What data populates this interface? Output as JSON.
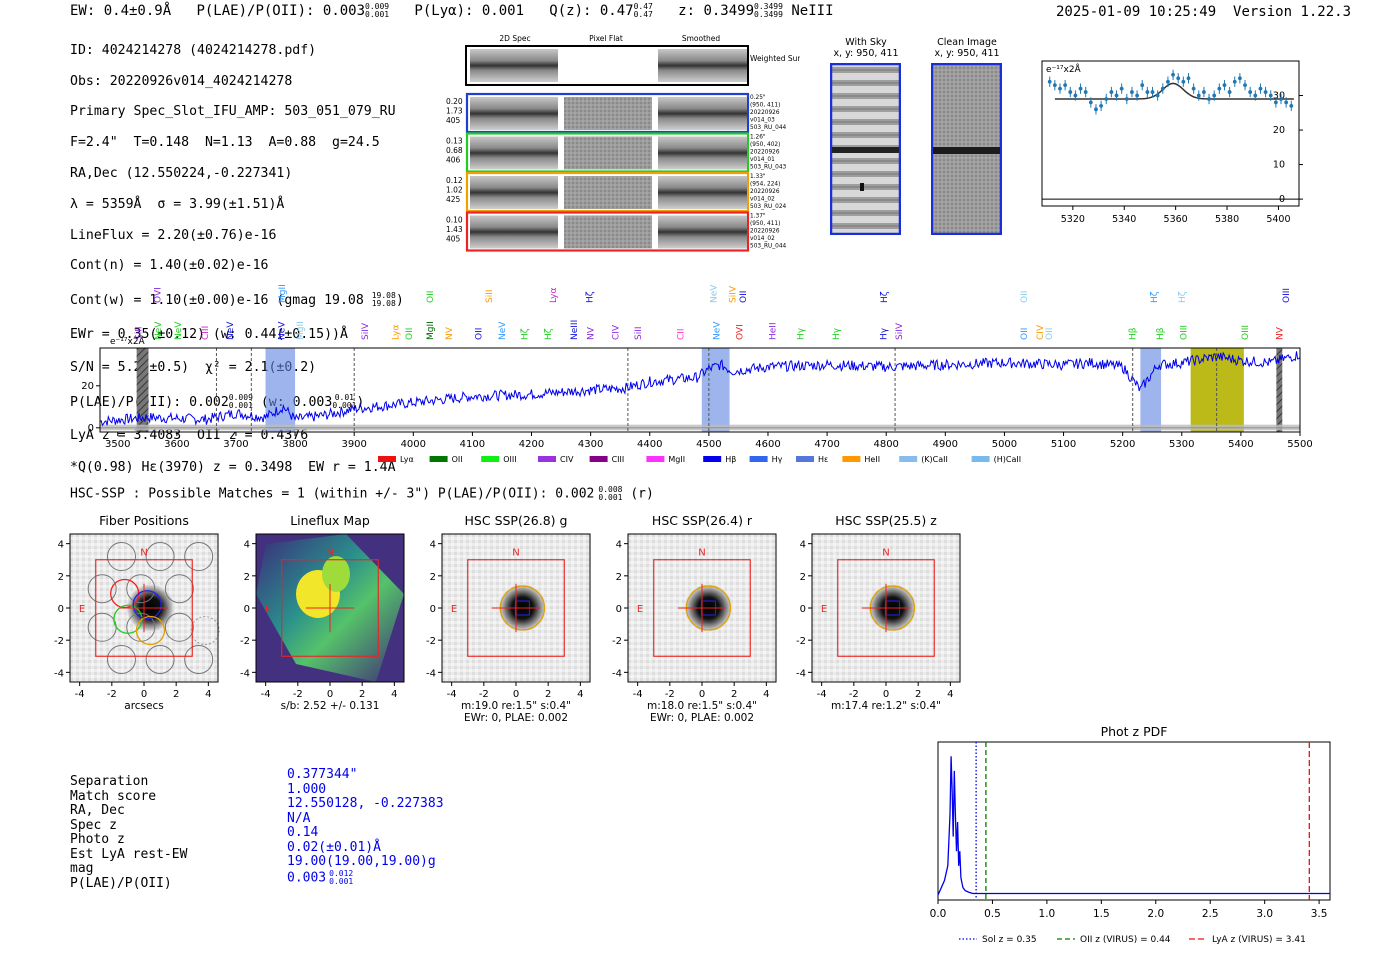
{
  "header": {
    "ew": "EW: 0.4±0.9Å",
    "plae_label": "P(LAE)/P(OII): 0.003",
    "plae_hi": "0.009",
    "plae_lo": "0.001",
    "plya": "P(Lyα): 0.001",
    "qz_label": "Q(z): 0.47",
    "qz_hi": "0.47",
    "qz_lo": "0.47",
    "z_label": "z: 0.3499",
    "z_hi": "0.3499",
    "z_lo": "0.3499",
    "line": "NeIII",
    "timestamp": "2025-01-09 10:25:49",
    "version": "Version 1.22.3"
  },
  "info": {
    "id": "ID: 4024214278 (4024214278.pdf)",
    "obs": "Obs: 20220926v014_4024214278",
    "primary": "Primary Spec_Slot_IFU_AMP: 503_051_079_RU",
    "fwhm": "F=2.4\"  T=0.148  N=1.13  A=0.88  g=24.5",
    "radec": "RA,Dec (12.550224,-0.227341)",
    "lambda": "λ = 5359Å  σ = 3.99(±1.51)Å",
    "lineflux": "LineFlux = 2.20(±0.76)e-16",
    "contn": "Cont(n) = 1.40(±0.02)e-16",
    "contw": "Cont(w) = 1.10(±0.00)e-16 (gmag 19.08",
    "contw_hi": "19.08",
    "contw_lo": "19.08",
    "ewr": "EWr = 0.35(±0.12) (w: 0.44(±0.15))Å",
    "sn": "S/N = 5.2(±0.5)  χ² = 2.1(±0.2)",
    "plae": "P(LAE)/P(OII): 0.002",
    "plae_hi": "0.009",
    "plae_lo": "0.001",
    "plae_w": "(w: 0.003",
    "plae_w_hi": "0.01",
    "plae_w_lo": "0.001",
    "lya": "LyA z = 3.4083  OII z = 0.4376",
    "q": "*Q(0.98) Hε(3970) z = 0.3498  EW r = 1.4Å"
  },
  "cutouts": {
    "col_labels": [
      "2D Spec",
      "Pixel Flat",
      "Smoothed"
    ],
    "weighted_label": "Weighted Sum",
    "rows": [
      {
        "nums": [
          "0.20",
          "1.73",
          "405"
        ],
        "meta": [
          "0.25\"",
          "(950, 411)",
          "20220926",
          "v014_03",
          "503_RU_044"
        ],
        "color": "#1f3fd0"
      },
      {
        "nums": [
          "0.13",
          "0.68",
          "406"
        ],
        "meta": [
          "1.26\"",
          "(950, 402)",
          "20220926",
          "v014_01",
          "503_RU_043"
        ],
        "color": "#22cc22"
      },
      {
        "nums": [
          "0.12",
          "1.02",
          "425"
        ],
        "meta": [
          "1.33\"",
          "(954, 224)",
          "20220926",
          "v014_02",
          "503_RU_024"
        ],
        "color": "#f0a000"
      },
      {
        "nums": [
          "0.10",
          "1.43",
          "405"
        ],
        "meta": [
          "1.37\"",
          "(950, 411)",
          "20220926",
          "v014_02",
          "503_RU_044"
        ],
        "color": "#ee2222"
      }
    ],
    "with_sky": "With Sky",
    "with_sky_xy": "x, y: 950, 411",
    "clean": "Clean Image",
    "clean_xy": "x, y: 950, 411"
  },
  "zoom_chart": {
    "type": "line",
    "ylabel": "e⁻¹⁷x2Å",
    "xlim": [
      5308,
      5408
    ],
    "ylim": [
      -2,
      40
    ],
    "xticks": [
      5320,
      5340,
      5360,
      5380,
      5400
    ],
    "yticks": [
      0,
      10,
      20,
      30
    ],
    "x": [
      5311,
      5313,
      5315,
      5317,
      5319,
      5321,
      5323,
      5325,
      5327,
      5329,
      5331,
      5333,
      5335,
      5337,
      5339,
      5341,
      5343,
      5345,
      5347,
      5349,
      5351,
      5353,
      5355,
      5357,
      5359,
      5361,
      5363,
      5365,
      5367,
      5369,
      5371,
      5373,
      5375,
      5377,
      5379,
      5381,
      5383,
      5385,
      5387,
      5389,
      5391,
      5393,
      5395,
      5397,
      5399,
      5401,
      5403,
      5405
    ],
    "y": [
      34,
      33,
      32,
      33,
      31,
      30,
      32,
      31,
      28,
      26,
      27,
      29,
      31,
      30,
      32,
      29,
      31,
      30,
      33,
      31,
      31,
      30,
      32,
      34,
      36,
      35,
      34,
      35,
      32,
      30,
      31,
      29,
      30,
      32,
      33,
      31,
      34,
      35,
      33,
      31,
      30,
      32,
      31,
      30,
      28,
      29,
      28,
      27
    ],
    "fit_baseline": 29,
    "fit_peak": 33.5,
    "fit_center": 5359,
    "fit_sigma": 4
  },
  "spectrum": {
    "type": "line",
    "ylabel": "e⁻¹⁷x2Å",
    "xlim": [
      3470,
      5500
    ],
    "ylim": [
      -2,
      38
    ],
    "xticks": [
      3500,
      3600,
      3700,
      3800,
      3900,
      4000,
      4100,
      4200,
      4300,
      4400,
      4500,
      4600,
      4700,
      4800,
      4900,
      5000,
      5100,
      5200,
      5300,
      5400,
      5500
    ],
    "yticks": [
      0,
      20
    ],
    "anchors_x": [
      3470,
      3550,
      3650,
      3700,
      3750,
      3780,
      3800,
      3850,
      3900,
      4000,
      4100,
      4200,
      4300,
      4360,
      4400,
      4480,
      4500,
      4520,
      4540,
      4600,
      4700,
      4800,
      4900,
      5000,
      5100,
      5150,
      5200,
      5230,
      5260,
      5300,
      5359,
      5400,
      5450,
      5500
    ],
    "anchors_y": [
      3,
      5,
      4,
      7,
      5,
      10,
      4,
      6,
      9,
      12,
      15,
      16,
      18,
      19,
      22,
      24,
      28,
      30,
      27,
      29,
      30,
      29,
      30,
      31,
      30,
      31,
      29,
      18,
      30,
      31,
      34,
      32,
      31,
      35
    ],
    "bands": [
      {
        "x0": 3750,
        "x1": 3800,
        "color": "#5b84e0",
        "alpha": 0.6
      },
      {
        "x0": 4488,
        "x1": 4535,
        "color": "#5b84e0",
        "alpha": 0.6
      },
      {
        "x0": 5230,
        "x1": 5265,
        "color": "#5b84e0",
        "alpha": 0.6
      },
      {
        "x0": 5315,
        "x1": 5405,
        "color": "#b5b300",
        "alpha": 0.9
      }
    ],
    "hatched": [
      {
        "x0": 3532,
        "x1": 3552
      },
      {
        "x0": 5460,
        "x1": 5470
      }
    ],
    "dashed_lines": [
      3667,
      3726,
      3900,
      4363,
      4500,
      4815,
      5217,
      5359
    ],
    "line_labels_top": [
      {
        "x": 3567,
        "text": "OVI",
        "color": "#8a2be2"
      },
      {
        "x": 3778,
        "text": "MgII",
        "color": "#3399ff"
      },
      {
        "x": 4028,
        "text": "OII",
        "color": "#22cc22"
      },
      {
        "x": 4128,
        "text": "SiII",
        "color": "#ff9900"
      },
      {
        "x": 4236,
        "text": "Lyα",
        "color": "#cc22cc"
      },
      {
        "x": 4298,
        "text": "Hζ",
        "color": "#1010dd"
      },
      {
        "x": 4508,
        "text": "NeV",
        "color": "#88ccee"
      },
      {
        "x": 4540,
        "text": "SiIV",
        "color": "#ff9900"
      },
      {
        "x": 4558,
        "text": "OII",
        "color": "#1010dd"
      },
      {
        "x": 4796,
        "text": "Hζ",
        "color": "#1010dd"
      },
      {
        "x": 5033,
        "text": "OII",
        "color": "#88ccee"
      },
      {
        "x": 5253,
        "text": "Hζ",
        "color": "#3399ff"
      },
      {
        "x": 5300,
        "text": "Hζ",
        "color": "#88ccee"
      },
      {
        "x": 5476,
        "text": "OIII",
        "color": "#1010dd"
      }
    ],
    "line_labels_bottom": [
      {
        "x": 3535,
        "text": "SiII",
        "color": "#8a2be2"
      },
      {
        "x": 3568,
        "text": "NeV",
        "color": "#22cc22"
      },
      {
        "x": 3602,
        "text": "NeV",
        "color": "#22cc22"
      },
      {
        "x": 3648,
        "text": "CIII",
        "color": "#cc22cc"
      },
      {
        "x": 3690,
        "text": "NeV",
        "color": "#1010dd"
      },
      {
        "x": 3777,
        "text": "NeV",
        "color": "#1010dd"
      },
      {
        "x": 3808,
        "text": "MgII",
        "color": "#88ccee"
      },
      {
        "x": 3918,
        "text": "SiIV",
        "color": "#8a2be2"
      },
      {
        "x": 3970,
        "text": "Lyα",
        "color": "#ff9900"
      },
      {
        "x": 3993,
        "text": "OII",
        "color": "#22cc22"
      },
      {
        "x": 4028,
        "text": "MgII",
        "color": "#006600"
      },
      {
        "x": 4060,
        "text": "NV",
        "color": "#ff9900"
      },
      {
        "x": 4110,
        "text": "OII",
        "color": "#1010dd"
      },
      {
        "x": 4150,
        "text": "NeV",
        "color": "#3399ff"
      },
      {
        "x": 4188,
        "text": "Hζ",
        "color": "#22cc22"
      },
      {
        "x": 4228,
        "text": "Hζ",
        "color": "#22cc22"
      },
      {
        "x": 4272,
        "text": "NeIII",
        "color": "#1010dd"
      },
      {
        "x": 4300,
        "text": "NV",
        "color": "#8a2be2"
      },
      {
        "x": 4342,
        "text": "CIV",
        "color": "#8a2be2"
      },
      {
        "x": 4380,
        "text": "SiII",
        "color": "#8a2be2"
      },
      {
        "x": 4452,
        "text": "CII",
        "color": "#ff33cc"
      },
      {
        "x": 4513,
        "text": "NeV",
        "color": "#3399ff"
      },
      {
        "x": 4552,
        "text": "OVI",
        "color": "#ee2222"
      },
      {
        "x": 4608,
        "text": "HeII",
        "color": "#8a2be2"
      },
      {
        "x": 4655,
        "text": "Hγ",
        "color": "#22cc22"
      },
      {
        "x": 4715,
        "text": "Hγ",
        "color": "#22cc22"
      },
      {
        "x": 4795,
        "text": "Hγ",
        "color": "#1010dd"
      },
      {
        "x": 4822,
        "text": "SiIV",
        "color": "#8a2be2"
      },
      {
        "x": 5033,
        "text": "OII",
        "color": "#3399ff"
      },
      {
        "x": 5060,
        "text": "CIV",
        "color": "#ff9900"
      },
      {
        "x": 5075,
        "text": "OII",
        "color": "#88ccee"
      },
      {
        "x": 5217,
        "text": "Hβ",
        "color": "#22cc22"
      },
      {
        "x": 5263,
        "text": "Hβ",
        "color": "#22cc22"
      },
      {
        "x": 5303,
        "text": "OIII",
        "color": "#22cc22"
      },
      {
        "x": 5407,
        "text": "OIII",
        "color": "#22cc22"
      },
      {
        "x": 5465,
        "text": "NV",
        "color": "#ee2222"
      }
    ],
    "legend": [
      {
        "label": "Lyα",
        "color": "#ee1111"
      },
      {
        "label": "OII",
        "color": "#007700"
      },
      {
        "label": "OIII",
        "color": "#11ee11"
      },
      {
        "label": "CIV",
        "color": "#9933dd"
      },
      {
        "label": "CIII",
        "color": "#880088"
      },
      {
        "label": "MgII",
        "color": "#ff33ff"
      },
      {
        "label": "Hβ",
        "color": "#0000ee"
      },
      {
        "label": "Hγ",
        "color": "#3366ee"
      },
      {
        "label": "Hε",
        "color": "#5577dd"
      },
      {
        "label": "HeII",
        "color": "#ff9900"
      },
      {
        "label": "(K)CaII",
        "color": "#88bbee"
      },
      {
        "label": "(H)CaII",
        "color": "#77bbee"
      }
    ]
  },
  "hsc": {
    "title": "HSC-SSP : Possible Matches = 1 (within +/- 3\")  P(LAE)/P(OII): 0.002",
    "title_hi": "0.008",
    "title_lo": "0.001",
    "title_suffix": "(r)",
    "panels": [
      {
        "title": "Fiber Positions",
        "xlabel": "arcsecs",
        "caption2": ""
      },
      {
        "title": "Lineflux Map",
        "xlabel": "s/b: 2.52 +/- 0.131",
        "caption2": ""
      },
      {
        "title": "HSC SSP(26.8) g",
        "xlabel": "m:19.0  re:1.5\"  s:0.4\"",
        "caption2": "EWr: 0, PLAE: 0.002"
      },
      {
        "title": "HSC SSP(26.4) r",
        "xlabel": "m:18.0  re:1.5\"  s:0.4\"",
        "caption2": "EWr: 0, PLAE: 0.002"
      },
      {
        "title": "HSC SSP(25.5) z",
        "xlabel": "m:17.4  re:1.2\"  s:0.4\"",
        "caption2": ""
      }
    ],
    "ticks": [
      "-4",
      "-2",
      "0",
      "2",
      "4"
    ],
    "n_label": "N",
    "e_label": "E"
  },
  "match_table": {
    "labels": [
      "Separation",
      "Match score",
      "RA, Dec",
      "Spec z",
      "Photo z",
      "Est LyA rest-EW",
      "mag",
      "P(LAE)/P(OII)"
    ],
    "values": [
      "0.377344\"",
      "1.000",
      "12.550128, -0.227383",
      "N/A",
      "0.14",
      "0.02(±0.01)Å",
      "19.00(19.00,19.00)g",
      "0.003"
    ],
    "plae_hi": "0.012",
    "plae_lo": "0.001"
  },
  "photz": {
    "type": "line",
    "title": "Phot z PDF",
    "xlim": [
      0,
      3.6
    ],
    "xticks": [
      "0.0",
      "0.5",
      "1.0",
      "1.5",
      "2.0",
      "2.5",
      "3.0",
      "3.5"
    ],
    "x": [
      0.0,
      0.03,
      0.06,
      0.09,
      0.11,
      0.12,
      0.13,
      0.14,
      0.15,
      0.16,
      0.17,
      0.18,
      0.19,
      0.2,
      0.21,
      0.22,
      0.23,
      0.25,
      0.28,
      0.32,
      0.4,
      0.6,
      1.0,
      3.6
    ],
    "y": [
      0.0,
      0.05,
      0.1,
      0.2,
      0.55,
      0.95,
      0.7,
      0.4,
      0.85,
      0.55,
      0.3,
      0.5,
      0.2,
      0.3,
      0.12,
      0.08,
      0.05,
      0.03,
      0.02,
      0.01,
      0.01,
      0.01,
      0.01,
      0.01
    ],
    "sol_z": 0.35,
    "oii_z": 0.44,
    "lya_z": 3.41,
    "legend": [
      "Sol z = 0.35",
      "OII z (VIRUS) = 0.44",
      "LyA z (VIRUS) = 3.41"
    ]
  }
}
